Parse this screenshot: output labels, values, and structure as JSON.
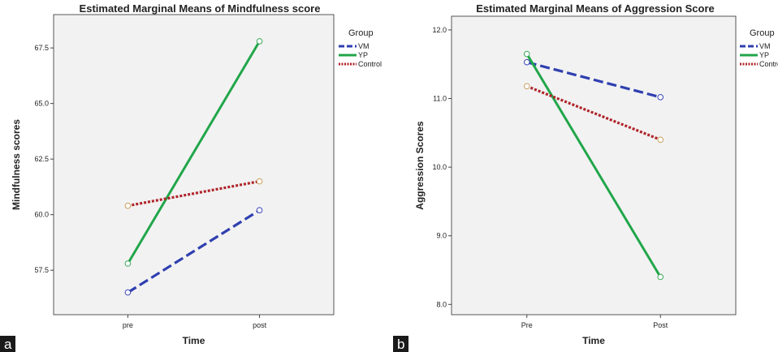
{
  "panel_labels": [
    "a",
    "b"
  ],
  "colors": {
    "VM": "#2f3fb0",
    "YP": "#21a64a",
    "Control": "#b0242a",
    "plot_bg": "#f2f2f2"
  },
  "chart_data": [
    {
      "type": "line",
      "title": "Estimated Marginal Means of Mindfulness score",
      "xlabel": "Time",
      "ylabel": "Mindfulness scores",
      "categories": [
        "pre",
        "post"
      ],
      "yticks": [
        "57.5",
        "60.0",
        "62.5",
        "65.0",
        "67.5"
      ],
      "ylim": [
        55.5,
        69
      ],
      "grid": false,
      "legend_title": "Group",
      "legend_position": "right",
      "series": [
        {
          "name": "VM",
          "values": [
            56.5,
            60.2
          ],
          "style": "dashed",
          "color": "#2f3fb0"
        },
        {
          "name": "YP",
          "values": [
            57.8,
            67.8
          ],
          "style": "solid",
          "color": "#21a64a"
        },
        {
          "name": "Control",
          "values": [
            60.4,
            61.5
          ],
          "style": "dotted",
          "color": "#b0242a"
        }
      ]
    },
    {
      "type": "line",
      "title": "Estimated Marginal Means of Aggression Score",
      "xlabel": "Time",
      "ylabel": "Aggression Scores",
      "categories": [
        "Pre",
        "Post"
      ],
      "yticks": [
        "8.0",
        "9.0",
        "10.0",
        "11.0",
        "12.0"
      ],
      "ylim": [
        7.85,
        12.2
      ],
      "grid": false,
      "legend_title": "Group",
      "legend_position": "right",
      "series": [
        {
          "name": "VM",
          "values": [
            11.53,
            11.02
          ],
          "style": "dashed",
          "color": "#2f3fb0"
        },
        {
          "name": "YP",
          "values": [
            11.65,
            8.4
          ],
          "style": "solid",
          "color": "#21a64a"
        },
        {
          "name": "Control",
          "values": [
            11.18,
            10.4
          ],
          "style": "dotted",
          "color": "#b0242a"
        }
      ]
    }
  ]
}
